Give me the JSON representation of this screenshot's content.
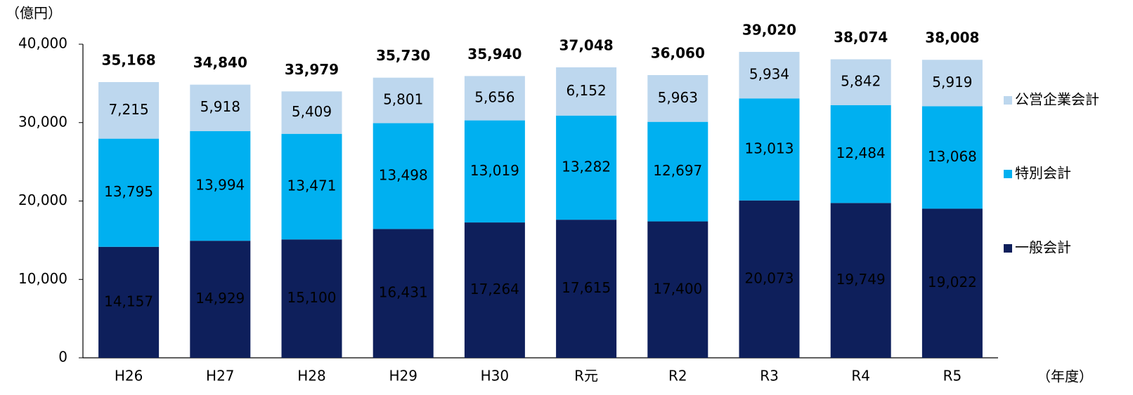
{
  "chart_data": {
    "type": "stacked_bar",
    "y_label": "（億円）",
    "x_label": "（年度）",
    "categories": [
      "H26",
      "H27",
      "H28",
      "H29",
      "H30",
      "R元",
      "R2",
      "R3",
      "R4",
      "R5"
    ],
    "series": [
      {
        "name": "一般会計",
        "color": "#0e1f5b",
        "values": [
          14157,
          14929,
          15100,
          16431,
          17264,
          17615,
          17400,
          20073,
          19749,
          19022
        ],
        "value_labels": [
          "14,157",
          "14,929",
          "15,100",
          "16,431",
          "17,264",
          "17,615",
          "17,400",
          "20,073",
          "19,749",
          "19,022"
        ]
      },
      {
        "name": "特別会計",
        "color": "#00b0f0",
        "values": [
          13795,
          13994,
          13471,
          13498,
          13019,
          13282,
          12697,
          13013,
          12484,
          13068
        ],
        "value_labels": [
          "13,795",
          "13,994",
          "13,471",
          "13,498",
          "13,019",
          "13,282",
          "12,697",
          "13,013",
          "12,484",
          "13,068"
        ]
      },
      {
        "name": "公営企業会計",
        "color": "#bdd7ee",
        "values": [
          7215,
          5918,
          5409,
          5801,
          5656,
          6152,
          5963,
          5934,
          5842,
          5919
        ],
        "value_labels": [
          "7,215",
          "5,918",
          "5,409",
          "5,801",
          "5,656",
          "6,152",
          "5,963",
          "5,934",
          "5,842",
          "5,919"
        ]
      }
    ],
    "totals": [
      "35,168",
      "34,840",
      "33,979",
      "35,730",
      "35,940",
      "37,048",
      "36,060",
      "39,020",
      "38,074",
      "38,008"
    ],
    "ylim": [
      0,
      40000
    ],
    "yticks": [
      0,
      {
        "value": 10000,
        "label": "10,000"
      },
      {
        "value": 20000,
        "label": "20,000"
      },
      {
        "value": 30000,
        "label": "30,000"
      },
      {
        "value": 40000,
        "label": "40,000"
      }
    ],
    "legend": "right"
  }
}
